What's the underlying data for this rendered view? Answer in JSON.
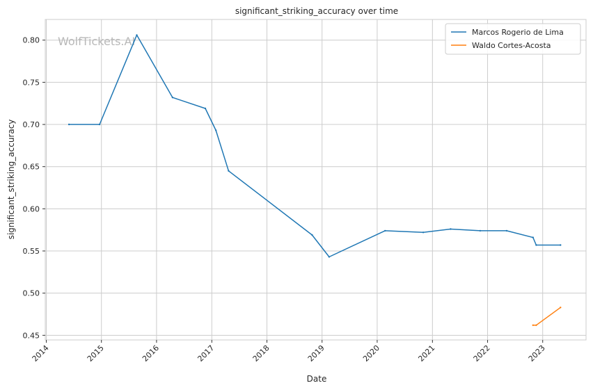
{
  "chart_data": {
    "type": "line",
    "title": "significant_striking_accuracy over time",
    "xlabel": "Date",
    "ylabel": "significant_striking_accuracy",
    "watermark": "WolfTickets.AI",
    "grid": true,
    "legend_position": "top-right",
    "x_tick_labels": [
      "2014",
      "2015",
      "2016",
      "2017",
      "2018",
      "2019",
      "2020",
      "2021",
      "2022",
      "2023"
    ],
    "y_tick_labels": [
      "0.45",
      "0.50",
      "0.55",
      "0.60",
      "0.65",
      "0.70",
      "0.75",
      "0.80"
    ],
    "xlim": [
      "2013-12-25",
      "2023-10-15"
    ],
    "ylim": [
      0.4445,
      0.8245
    ],
    "series": [
      {
        "name": "Marcos Rogerio de Lima",
        "color": "#1f77b4",
        "points": [
          [
            "2014-05-31",
            0.7
          ],
          [
            "2014-12-20",
            0.7
          ],
          [
            "2015-08-23",
            0.806
          ],
          [
            "2016-04-16",
            0.732
          ],
          [
            "2016-11-19",
            0.719
          ],
          [
            "2017-01-28",
            0.693
          ],
          [
            "2017-04-22",
            0.645
          ],
          [
            "2018-10-27",
            0.569
          ],
          [
            "2019-02-17",
            0.543
          ],
          [
            "2020-02-22",
            0.574
          ],
          [
            "2020-11-01",
            0.572
          ],
          [
            "2021-05-01",
            0.576
          ],
          [
            "2021-11-13",
            0.574
          ],
          [
            "2022-05-07",
            0.574
          ],
          [
            "2022-10-29",
            0.566
          ],
          [
            "2022-11-19",
            0.557
          ],
          [
            "2023-04-29",
            0.557
          ]
        ]
      },
      {
        "name": "Waldo Cortes-Acosta",
        "color": "#ff7f0e",
        "points": [
          [
            "2022-10-29",
            0.462
          ],
          [
            "2022-11-19",
            0.462
          ],
          [
            "2023-04-29",
            0.483
          ]
        ]
      }
    ]
  }
}
